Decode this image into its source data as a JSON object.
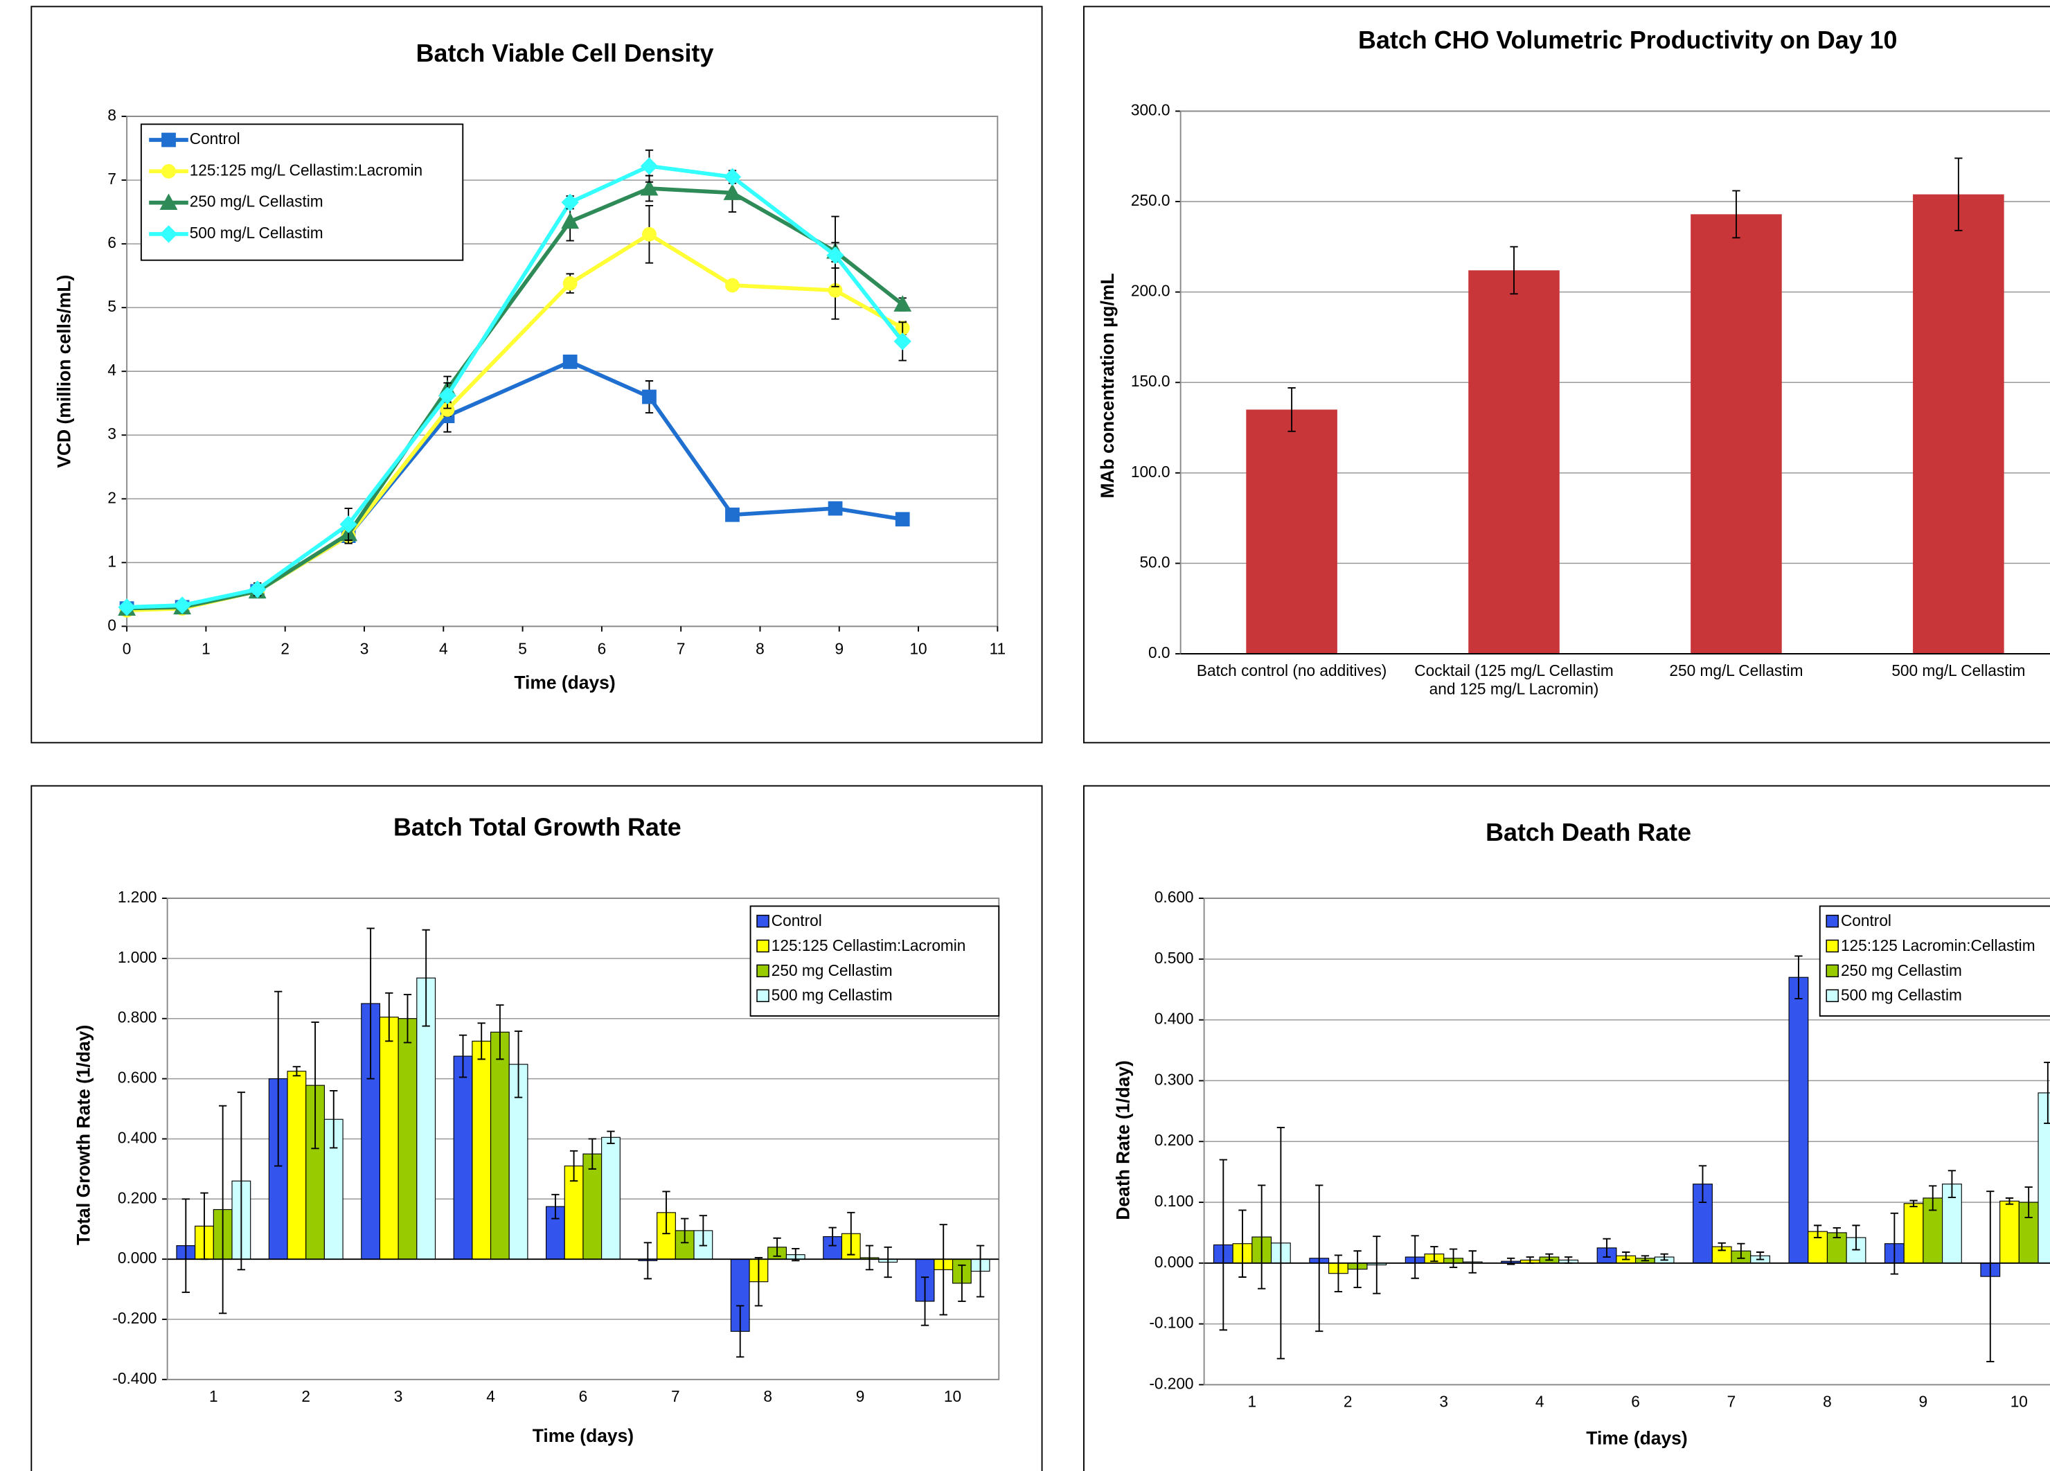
{
  "chart_data": [
    {
      "type": "line",
      "title": "Batch Viable Cell Density",
      "x_label": "Time (days)",
      "y_label": "VCD (million cells/mL)",
      "x": [
        0,
        0.7,
        1.65,
        2.8,
        4.05,
        5.6,
        6.6,
        7.65,
        8.95,
        9.8
      ],
      "xlim": [
        0,
        11
      ],
      "xticks": [
        0,
        1,
        2,
        3,
        4,
        5,
        6,
        7,
        8,
        9,
        10,
        11
      ],
      "ylim": [
        0,
        8
      ],
      "yticks": [
        0,
        1,
        2,
        3,
        4,
        5,
        6,
        7,
        8
      ],
      "grid": true,
      "legend": "upper left",
      "series": [
        {
          "name": "Control",
          "color": "#1f6fd0",
          "marker": "square",
          "values": [
            0.28,
            0.3,
            0.55,
            1.42,
            3.3,
            4.15,
            3.6,
            1.75,
            1.85,
            1.68
          ],
          "errors": [
            0.05,
            0.05,
            0.05,
            0.1,
            0.25,
            0.1,
            0.25,
            0.05,
            0.05,
            0.05
          ]
        },
        {
          "name": "125:125 mg/L Cellastim:Lacromin",
          "color": "#ffff33",
          "marker": "circle",
          "values": [
            0.25,
            0.28,
            0.55,
            1.42,
            3.4,
            5.38,
            6.15,
            5.35,
            5.27,
            4.68
          ],
          "errors": [
            0.05,
            0.05,
            0.05,
            0.1,
            0.1,
            0.15,
            0.45,
            0.05,
            0.45,
            0.1
          ]
        },
        {
          "name": "250 mg/L Cellastim",
          "color": "#2e8b57",
          "marker": "triangle",
          "values": [
            0.28,
            0.3,
            0.55,
            1.45,
            3.72,
            6.35,
            6.87,
            6.8,
            5.88,
            5.05
          ],
          "errors": [
            0.05,
            0.05,
            0.1,
            0.15,
            0.2,
            0.3,
            0.2,
            0.3,
            0.55,
            0.1
          ]
        },
        {
          "name": "500 mg/L Cellastim",
          "color": "#33ffff",
          "marker": "diamond",
          "values": [
            0.3,
            0.33,
            0.58,
            1.6,
            3.62,
            6.65,
            7.22,
            7.05,
            5.82,
            4.47
          ],
          "errors": [
            0.05,
            0.05,
            0.1,
            0.25,
            0.2,
            0.1,
            0.25,
            0.1,
            0.2,
            0.3
          ]
        }
      ]
    },
    {
      "type": "bar",
      "title": "Batch CHO Volumetric Productivity on Day 10",
      "y_label": "MAb concentration µg/mL",
      "categories": [
        "Batch control (no additives)",
        "Cocktail (125 mg/L Cellastim and 125 mg/L Lacromin)",
        "250 mg/L Cellastim",
        "500 mg/L Cellastim"
      ],
      "values": [
        135,
        212,
        243,
        254
      ],
      "errors": [
        12,
        13,
        13,
        20
      ],
      "color": "#c8363a",
      "ylim": [
        0,
        300
      ],
      "yticks": [
        {
          "value": 0,
          "label": "0.0"
        },
        {
          "value": 50,
          "label": "50.0"
        },
        {
          "value": 100,
          "label": "100.0"
        },
        {
          "value": 150,
          "label": "150.0"
        },
        {
          "value": 200,
          "label": "200.0"
        },
        {
          "value": 250,
          "label": "250.0"
        },
        {
          "value": 300,
          "label": "300.0"
        }
      ],
      "grid": true
    },
    {
      "type": "bar",
      "title": "Batch Total Growth Rate",
      "x_label": "Time (days)",
      "y_label": "Total Growth Rate (1/day)",
      "categories": [
        "1",
        "2",
        "3",
        "4",
        "6",
        "7",
        "8",
        "9",
        "10"
      ],
      "ylim": [
        -0.4,
        1.2
      ],
      "yticks": [
        {
          "value": -0.4,
          "label": "-0.400"
        },
        {
          "value": -0.2,
          "label": "-0.200"
        },
        {
          "value": 0,
          "label": "0.000"
        },
        {
          "value": 0.2,
          "label": "0.200"
        },
        {
          "value": 0.4,
          "label": "0.400"
        },
        {
          "value": 0.6,
          "label": "0.600"
        },
        {
          "value": 0.8,
          "label": "0.800"
        },
        {
          "value": 1,
          "label": "1.000"
        },
        {
          "value": 1.2,
          "label": "1.200"
        }
      ],
      "grid": true,
      "legend": "upper right",
      "series": [
        {
          "name": "Control",
          "color": "#3355ee",
          "values": [
            0.045,
            0.6,
            0.85,
            0.675,
            0.175,
            -0.005,
            -0.24,
            0.075,
            -0.14
          ],
          "errors": [
            0.155,
            0.29,
            0.25,
            0.07,
            0.04,
            0.06,
            0.085,
            0.03,
            0.08
          ]
        },
        {
          "name": "125:125 Cellastim:Lacromin",
          "color": "#ffff00",
          "values": [
            0.11,
            0.625,
            0.805,
            0.725,
            0.31,
            0.155,
            -0.075,
            0.085,
            -0.035
          ],
          "errors": [
            0.11,
            0.015,
            0.08,
            0.06,
            0.05,
            0.07,
            0.08,
            0.07,
            0.15
          ]
        },
        {
          "name": "250 mg Cellastim",
          "color": "#99cc00",
          "values": [
            0.165,
            0.578,
            0.8,
            0.755,
            0.35,
            0.095,
            0.04,
            0.005,
            -0.08
          ],
          "errors": [
            0.345,
            0.21,
            0.08,
            0.09,
            0.05,
            0.04,
            0.03,
            0.04,
            0.06
          ]
        },
        {
          "name": "500 mg Cellastim",
          "color": "#ccffff",
          "values": [
            0.26,
            0.465,
            0.935,
            0.648,
            0.405,
            0.095,
            0.015,
            -0.01,
            -0.04
          ],
          "errors": [
            0.295,
            0.095,
            0.16,
            0.11,
            0.02,
            0.05,
            0.02,
            0.05,
            0.085
          ]
        }
      ]
    },
    {
      "type": "bar",
      "title": "Batch Death Rate",
      "x_label": "Time (days)",
      "y_label": "Death Rate (1/day)",
      "categories": [
        "1",
        "2",
        "3",
        "4",
        "6",
        "7",
        "8",
        "9",
        "10"
      ],
      "ylim": [
        -0.2,
        0.6
      ],
      "yticks": [
        {
          "value": -0.2,
          "label": "-0.200"
        },
        {
          "value": -0.1,
          "label": "-0.100"
        },
        {
          "value": 0,
          "label": "0.000"
        },
        {
          "value": 0.1,
          "label": "0.100"
        },
        {
          "value": 0.2,
          "label": "0.200"
        },
        {
          "value": 0.3,
          "label": "0.300"
        },
        {
          "value": 0.4,
          "label": "0.400"
        },
        {
          "value": 0.5,
          "label": "0.500"
        },
        {
          "value": 0.6,
          "label": "0.600"
        }
      ],
      "grid": true,
      "legend": "upper right",
      "series": [
        {
          "name": "Control",
          "color": "#3355ee",
          "values": [
            0.03,
            0.008,
            0.01,
            0.003,
            0.025,
            0.13,
            0.47,
            0.032,
            -0.022
          ],
          "errors": [
            0.14,
            0.12,
            0.035,
            0.005,
            0.015,
            0.03,
            0.035,
            0.05,
            0.14
          ]
        },
        {
          "name": "125:125 Lacromin:Cellastim",
          "color": "#ffff00",
          "values": [
            0.032,
            -0.017,
            0.015,
            0.005,
            0.012,
            0.027,
            0.052,
            0.098,
            0.102
          ],
          "errors": [
            0.055,
            0.03,
            0.012,
            0.005,
            0.006,
            0.006,
            0.01,
            0.005,
            0.005
          ]
        },
        {
          "name": "250 mg Cellastim",
          "color": "#99cc00",
          "values": [
            0.043,
            -0.01,
            0.008,
            0.01,
            0.008,
            0.02,
            0.05,
            0.107,
            0.1
          ],
          "errors": [
            0.085,
            0.03,
            0.015,
            0.005,
            0.004,
            0.012,
            0.008,
            0.02,
            0.025
          ]
        },
        {
          "name": "500 mg Cellastim",
          "color": "#ccffff",
          "values": [
            0.033,
            -0.003,
            0.002,
            0.005,
            0.01,
            0.012,
            0.042,
            0.13,
            0.28
          ],
          "errors": [
            0.19,
            0.047,
            0.018,
            0.005,
            0.005,
            0.006,
            0.02,
            0.022,
            0.05
          ]
        }
      ]
    }
  ]
}
